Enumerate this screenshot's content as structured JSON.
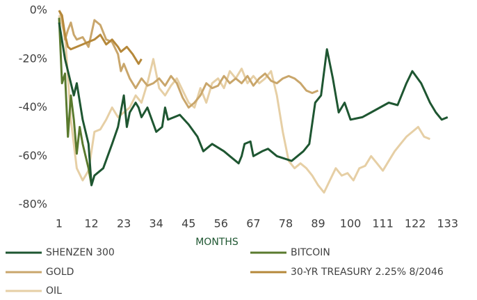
{
  "chart_data": {
    "type": "line",
    "x_label": "MONTHS",
    "xlim": [
      1,
      134
    ],
    "xticks": [
      1,
      12,
      23,
      34,
      45,
      56,
      67,
      78,
      89,
      100,
      111,
      122,
      133
    ],
    "ylim": [
      -80,
      0
    ],
    "yticks": [
      {
        "value": 0,
        "label": "0%"
      },
      {
        "value": -20,
        "label": "-20%"
      },
      {
        "value": -40,
        "label": "-40%"
      },
      {
        "value": -60,
        "label": "-60%"
      },
      {
        "value": -80,
        "label": "-80%"
      }
    ],
    "series": [
      {
        "name": "SHENZEN 300",
        "color": "#1e5631",
        "x": [
          1,
          3,
          6,
          7,
          9,
          11,
          12,
          13,
          16,
          19,
          21,
          23,
          24,
          25,
          27,
          28,
          29,
          31,
          34,
          36,
          37,
          38,
          42,
          45,
          48,
          50,
          53,
          57,
          59,
          62,
          63,
          64,
          66,
          67,
          70,
          72,
          75,
          80,
          84,
          86,
          88,
          90,
          92,
          94,
          96,
          98,
          100,
          104,
          107,
          110,
          113,
          116,
          119,
          121,
          124,
          127,
          129,
          131,
          133
        ],
        "values": [
          -5,
          -20,
          -35,
          -30,
          -45,
          -55,
          -72,
          -68,
          -65,
          -55,
          -48,
          -35,
          -48,
          -42,
          -38,
          -40,
          -44,
          -40,
          -50,
          -48,
          -40,
          -45,
          -43,
          -47,
          -52,
          -58,
          -55,
          -58,
          -60,
          -63,
          -60,
          -55,
          -54,
          -60,
          -58,
          -57,
          -60,
          -62,
          -58,
          -55,
          -38,
          -35,
          -16,
          -28,
          -42,
          -38,
          -45,
          -44,
          -42,
          -40,
          -38,
          -39,
          -30,
          -25,
          -30,
          -38,
          -42,
          -45,
          -44
        ]
      },
      {
        "name": "BITCOIN",
        "color": "#5a7a2e",
        "x": [
          1,
          2,
          3,
          4,
          5,
          6,
          7,
          8,
          9,
          10,
          11,
          12
        ],
        "values": [
          -3,
          -30,
          -26,
          -52,
          -35,
          -45,
          -59,
          -48,
          -55,
          -60,
          -65,
          -72
        ]
      },
      {
        "name": "GOLD",
        "color": "#c9a66b",
        "x": [
          1,
          2,
          3,
          4,
          5,
          6,
          7,
          9,
          11,
          13,
          15,
          17,
          19,
          21,
          22,
          23,
          25,
          27,
          29,
          31,
          33,
          35,
          37,
          39,
          41,
          43,
          45,
          47,
          49,
          51,
          53,
          55,
          57,
          59,
          61,
          63,
          65,
          67,
          69,
          71,
          73,
          75,
          77,
          79,
          81,
          83,
          85,
          87,
          89
        ],
        "values": [
          0,
          -3,
          -12,
          -8,
          -5,
          -10,
          -12,
          -11,
          -15,
          -4,
          -6,
          -12,
          -13,
          -18,
          -25,
          -22,
          -28,
          -32,
          -28,
          -31,
          -30,
          -28,
          -31,
          -27,
          -30,
          -36,
          -40,
          -38,
          -35,
          -30,
          -32,
          -31,
          -27,
          -30,
          -28,
          -30,
          -27,
          -31,
          -28,
          -26,
          -29,
          -30,
          -28,
          -27,
          -28,
          -30,
          -33,
          -34,
          -33
        ]
      },
      {
        "name": "30-YR TREASURY 2.25% 8/2046",
        "color": "#b5883a",
        "x": [
          1,
          2,
          3,
          4,
          5,
          7,
          9,
          11,
          13,
          15,
          16,
          17,
          19,
          21,
          22,
          24,
          26,
          28,
          29
        ],
        "values": [
          0,
          -2,
          -10,
          -15,
          -16,
          -15,
          -14,
          -13,
          -12,
          -10,
          -12,
          -14,
          -12,
          -15,
          -17,
          -15,
          -18,
          -22,
          -20
        ]
      },
      {
        "name": "OIL",
        "color": "#e6cfa5",
        "x": [
          1,
          3,
          5,
          7,
          9,
          11,
          13,
          15,
          17,
          19,
          21,
          23,
          25,
          27,
          29,
          31,
          33,
          35,
          37,
          39,
          41,
          43,
          45,
          47,
          49,
          51,
          53,
          55,
          57,
          59,
          61,
          63,
          65,
          67,
          69,
          71,
          73,
          75,
          77,
          79,
          81,
          83,
          85,
          87,
          89,
          91,
          93,
          95,
          97,
          99,
          101,
          103,
          105,
          107,
          109,
          111,
          113,
          115,
          117,
          119,
          121,
          123,
          125,
          127
        ],
        "values": [
          -2,
          -10,
          -45,
          -65,
          -70,
          -66,
          -50,
          -49,
          -45,
          -40,
          -44,
          -42,
          -40,
          -35,
          -38,
          -30,
          -20,
          -32,
          -35,
          -31,
          -28,
          -33,
          -38,
          -40,
          -32,
          -38,
          -30,
          -28,
          -32,
          -25,
          -28,
          -24,
          -30,
          -27,
          -30,
          -28,
          -25,
          -35,
          -50,
          -62,
          -65,
          -63,
          -65,
          -68,
          -72,
          -75,
          -70,
          -65,
          -68,
          -67,
          -70,
          -65,
          -64,
          -60,
          -63,
          -66,
          -62,
          -58,
          -55,
          -52,
          -50,
          -48,
          -52,
          -53
        ]
      }
    ]
  }
}
